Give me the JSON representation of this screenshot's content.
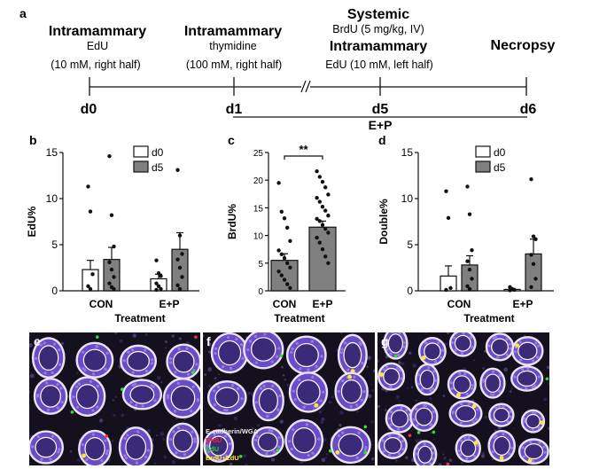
{
  "panel_a": {
    "label": "a",
    "events": [
      {
        "title": "Intramammary",
        "lines": [
          "EdU",
          "(10 mM, right half)"
        ],
        "day": "d0"
      },
      {
        "title": "Intramammary",
        "lines": [
          "thymidine",
          "(100 mM, right half)"
        ],
        "day": "d1"
      },
      {
        "title": "Systemic",
        "lines": [
          "BrdU (5 mg/kg, IV)"
        ],
        "title2": "Intramammary",
        "lines2": [
          "EdU (10 mM, left half)"
        ],
        "day": "d5"
      },
      {
        "title": "Necropsy",
        "lines": [],
        "day": "d6"
      }
    ],
    "treatment_bar": "E+P"
  },
  "chart_data": [
    {
      "panel": "b",
      "type": "bar",
      "ylabel": "EdU%",
      "xlabel": "Treatment",
      "ylim": [
        0,
        15
      ],
      "yticks": [
        "0",
        "5",
        "10",
        "15"
      ],
      "categories": [
        "CON",
        "E+P"
      ],
      "legend": [
        "d0",
        "d5"
      ],
      "series": [
        {
          "name": "d0",
          "color": "#ffffff",
          "values": [
            2.3,
            1.3
          ],
          "sem": [
            1.0,
            0.5
          ],
          "points": [
            [
              11.3,
              8.6,
              1.8,
              0.5,
              0.2
            ],
            [
              3.3,
              1.9,
              1.6,
              0.8,
              0.5,
              0.2,
              0.1
            ]
          ]
        },
        {
          "name": "d5",
          "color": "#808080",
          "values": [
            3.4,
            4.5
          ],
          "sem": [
            1.3,
            1.8
          ],
          "points": [
            [
              14.6,
              8.2,
              4.8,
              3.1,
              2.3,
              1.5,
              0.8,
              0.4,
              0.2
            ],
            [
              13.1,
              6.0,
              4.0,
              3.4,
              2.5,
              1.5,
              0.6,
              0.2
            ]
          ]
        }
      ]
    },
    {
      "panel": "c",
      "type": "bar",
      "ylabel": "BrdU%",
      "xlabel": "Treatment",
      "ylim": [
        0,
        25
      ],
      "yticks": [
        "0",
        "5",
        "10",
        "15",
        "20",
        "25"
      ],
      "categories": [
        "CON",
        "E+P"
      ],
      "significance": "**",
      "series": [
        {
          "name": "BrdU",
          "color": "#808080",
          "values": [
            5.5,
            11.5
          ],
          "sem": [
            1.2,
            1.1
          ],
          "points": [
            [
              19.5,
              14.3,
              13.1,
              11.4,
              9.0,
              7.3,
              6.6,
              5.9,
              5.0,
              4.2,
              3.5,
              2.8,
              2.0,
              1.2,
              0.5
            ],
            [
              21.6,
              20.6,
              19.7,
              18.7,
              17.4,
              16.8,
              16.1,
              15.2,
              14.5,
              13.6,
              13.0,
              12.6,
              11.9,
              11.2,
              10.5,
              9.6,
              8.7,
              7.5,
              6.2,
              5.0
            ]
          ]
        }
      ]
    },
    {
      "panel": "d",
      "type": "bar",
      "ylabel": "Double%",
      "xlabel": "Treatment",
      "ylim": [
        0,
        15
      ],
      "yticks": [
        "0",
        "5",
        "10",
        "15"
      ],
      "categories": [
        "CON",
        "E+P"
      ],
      "legend": [
        "d0",
        "d5"
      ],
      "series": [
        {
          "name": "d0",
          "color": "#ffffff",
          "values": [
            1.6,
            0.15
          ],
          "sem": [
            1.1,
            0.1
          ],
          "points": [
            [
              10.8,
              7.9,
              0.3,
              0.1
            ],
            [
              0.4,
              0.2,
              0.1,
              0.05
            ]
          ]
        },
        {
          "name": "d5",
          "color": "#808080",
          "values": [
            2.8,
            4.0
          ],
          "sem": [
            1.0,
            1.6
          ],
          "points": [
            [
              11.3,
              8.3,
              4.4,
              3.2,
              2.3,
              1.3,
              0.5,
              0.2
            ],
            [
              12.1,
              5.9,
              5.6,
              3.9,
              2.9,
              1.3,
              0.4
            ]
          ]
        }
      ]
    }
  ],
  "micrographs": {
    "labels": [
      "e",
      "f",
      "g"
    ],
    "legend": [
      {
        "text": "E-cadherin/WGA",
        "color": "#e8e8e8"
      },
      {
        "text": "BrdU",
        "color": "#ff2020"
      },
      {
        "text": "EdU",
        "color": "#20e020"
      },
      {
        "text": "BrdU+EdU",
        "color": "#ffee20"
      }
    ]
  }
}
